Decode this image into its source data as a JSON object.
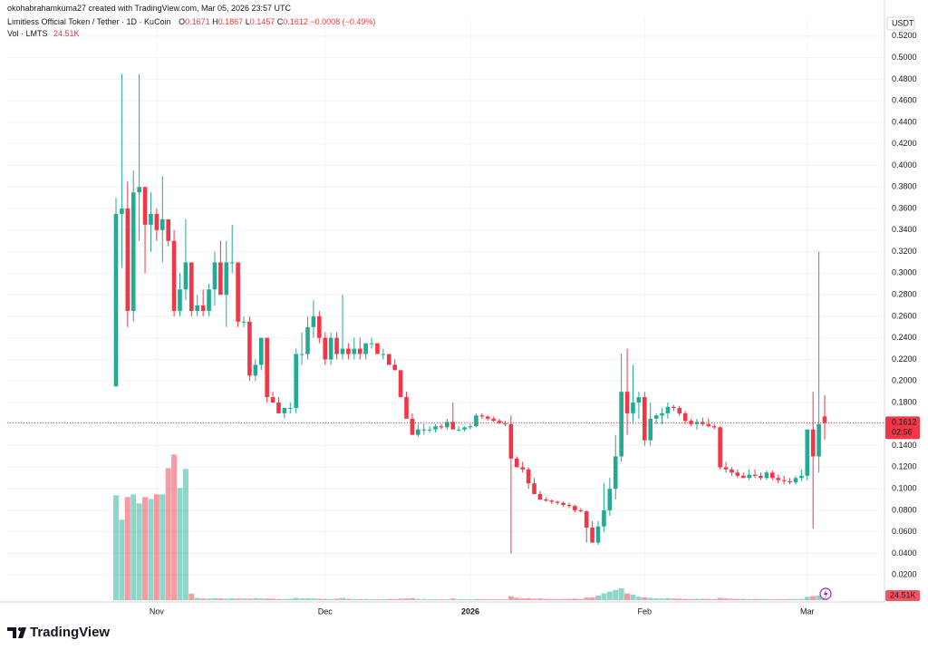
{
  "chart_data": {
    "type": "candlestick",
    "attribution": "okohabrahamkuma27 created with TradingView.com, Mar 05, 2026 23:57 UTC",
    "title": "Limitless Official Token / Tether · 1D · KuCoin",
    "ohlc_labels": [
      "O",
      "H",
      "L",
      "C"
    ],
    "change_label": "−0.0008 (−0.49%)",
    "volume_title": "Vol · LMTS",
    "currency": "USDT",
    "countdown": "02:56",
    "up_color": "#22ab94",
    "down_color": "#f23645",
    "grid": true,
    "ylim": [
      0,
      0.535
    ],
    "yticks": [
      {
        "value": 0.02,
        "label": "0.0200"
      },
      {
        "value": 0.04,
        "label": "0.0400"
      },
      {
        "value": 0.06,
        "label": "0.0600"
      },
      {
        "value": 0.08,
        "label": "0.0800"
      },
      {
        "value": 0.1,
        "label": "0.1000"
      },
      {
        "value": 0.12,
        "label": "0.1200"
      },
      {
        "value": 0.14,
        "label": "0.1400"
      },
      {
        "value": 0.16,
        "label": "0.1600"
      },
      {
        "value": 0.18,
        "label": "0.1800"
      },
      {
        "value": 0.2,
        "label": "0.2000"
      },
      {
        "value": 0.22,
        "label": "0.2200"
      },
      {
        "value": 0.24,
        "label": "0.2400"
      },
      {
        "value": 0.26,
        "label": "0.2600"
      },
      {
        "value": 0.28,
        "label": "0.2800"
      },
      {
        "value": 0.3,
        "label": "0.3000"
      },
      {
        "value": 0.32,
        "label": "0.3200"
      },
      {
        "value": 0.34,
        "label": "0.3400"
      },
      {
        "value": 0.36,
        "label": "0.3600"
      },
      {
        "value": 0.38,
        "label": "0.3800"
      },
      {
        "value": 0.4,
        "label": "0.4000"
      },
      {
        "value": 0.42,
        "label": "0.4200"
      },
      {
        "value": 0.44,
        "label": "0.4400"
      },
      {
        "value": 0.46,
        "label": "0.4600"
      },
      {
        "value": 0.48,
        "label": "0.4800"
      },
      {
        "value": 0.5,
        "label": "0.5000"
      },
      {
        "value": 0.52,
        "label": "0.5200"
      }
    ],
    "categories": [
      null,
      null,
      null,
      null,
      null,
      null,
      null,
      "Nov",
      null,
      null,
      null,
      null,
      null,
      null,
      null,
      null,
      null,
      null,
      null,
      null,
      null,
      null,
      null,
      null,
      null,
      null,
      null,
      null,
      null,
      null,
      null,
      null,
      null,
      null,
      null,
      null,
      "Dec",
      null,
      null,
      null,
      null,
      null,
      null,
      null,
      null,
      null,
      null,
      null,
      null,
      null,
      null,
      null,
      null,
      null,
      null,
      null,
      null,
      null,
      null,
      null,
      null,
      "2026",
      null,
      null,
      null,
      null,
      null,
      null,
      null,
      null,
      null,
      null,
      null,
      null,
      null,
      null,
      null,
      null,
      null,
      null,
      null,
      null,
      null,
      null,
      null,
      null,
      null,
      null,
      null,
      null,
      null,
      "Feb",
      null,
      null,
      null,
      null,
      null,
      null,
      null,
      null,
      null,
      null,
      null,
      null,
      null,
      null,
      null,
      null,
      null,
      null,
      null,
      null,
      null,
      null,
      null,
      null,
      null,
      null,
      null,
      "Mar",
      null,
      null,
      null
    ],
    "open": [
      0.195,
      0.355,
      0.36,
      0.265,
      0.375,
      0.38,
      0.345,
      0.355,
      0.34,
      0.35,
      0.33,
      0.265,
      0.285,
      0.31,
      0.265,
      0.27,
      0.265,
      0.285,
      0.31,
      0.28,
      0.31,
      0.31,
      0.255,
      0.255,
      0.205,
      0.215,
      0.24,
      0.185,
      0.18,
      0.17,
      0.175,
      0.175,
      0.225,
      0.225,
      0.25,
      0.26,
      0.24,
      0.22,
      0.24,
      0.225,
      0.23,
      0.225,
      0.23,
      0.225,
      0.235,
      0.235,
      0.225,
      0.225,
      0.215,
      0.21,
      0.185,
      0.165,
      0.15,
      0.155,
      0.155,
      0.155,
      0.158,
      0.157,
      0.162,
      0.155,
      0.155,
      0.157,
      0.158,
      0.168,
      0.167,
      0.165,
      0.163,
      0.161,
      0.16,
      0.128,
      0.12,
      0.118,
      0.105,
      0.095,
      0.09,
      0.089,
      0.088,
      0.087,
      0.085,
      0.084,
      0.08,
      0.079,
      0.064,
      0.05,
      0.065,
      0.08,
      0.1,
      0.13,
      0.19,
      0.17,
      0.18,
      0.185,
      0.145,
      0.165,
      0.168,
      0.17,
      0.176,
      0.175,
      0.17,
      0.163,
      0.16,
      0.162,
      0.16,
      0.158,
      0.157,
      0.12,
      0.118,
      0.115,
      0.112,
      0.11,
      0.113,
      0.112,
      0.11,
      0.115,
      0.11,
      0.108,
      0.107,
      0.106,
      0.11,
      0.112,
      0.155,
      0.13,
      0.1671
    ],
    "high": [
      0.37,
      0.485,
      0.385,
      0.395,
      0.485,
      0.38,
      0.375,
      0.36,
      0.39,
      0.35,
      0.34,
      0.3,
      0.35,
      0.31,
      0.28,
      0.285,
      0.29,
      0.32,
      0.33,
      0.33,
      0.345,
      0.31,
      0.26,
      0.26,
      0.22,
      0.24,
      0.24,
      0.19,
      0.185,
      0.175,
      0.18,
      0.23,
      0.245,
      0.26,
      0.275,
      0.265,
      0.245,
      0.245,
      0.245,
      0.28,
      0.235,
      0.24,
      0.24,
      0.235,
      0.24,
      0.235,
      0.23,
      0.225,
      0.22,
      0.21,
      0.19,
      0.17,
      0.16,
      0.16,
      0.158,
      0.16,
      0.16,
      0.165,
      0.18,
      0.158,
      0.158,
      0.16,
      0.17,
      0.17,
      0.168,
      0.167,
      0.165,
      0.163,
      0.168,
      0.13,
      0.125,
      0.12,
      0.11,
      0.098,
      0.092,
      0.09,
      0.089,
      0.088,
      0.087,
      0.085,
      0.082,
      0.08,
      0.07,
      0.07,
      0.105,
      0.11,
      0.15,
      0.225,
      0.23,
      0.215,
      0.19,
      0.19,
      0.18,
      0.17,
      0.175,
      0.18,
      0.178,
      0.177,
      0.172,
      0.165,
      0.165,
      0.166,
      0.165,
      0.16,
      0.158,
      0.125,
      0.12,
      0.118,
      0.115,
      0.118,
      0.118,
      0.115,
      0.117,
      0.117,
      0.113,
      0.112,
      0.11,
      0.112,
      0.118,
      0.155,
      0.19,
      0.32,
      0.1867
    ],
    "low": [
      0.195,
      0.305,
      0.25,
      0.255,
      0.33,
      0.3,
      0.32,
      0.33,
      0.31,
      0.325,
      0.26,
      0.26,
      0.275,
      0.26,
      0.26,
      0.26,
      0.26,
      0.27,
      0.28,
      0.25,
      0.3,
      0.25,
      0.25,
      0.2,
      0.2,
      0.21,
      0.18,
      0.18,
      0.17,
      0.165,
      0.17,
      0.17,
      0.215,
      0.22,
      0.24,
      0.235,
      0.215,
      0.215,
      0.22,
      0.22,
      0.22,
      0.22,
      0.22,
      0.22,
      0.23,
      0.225,
      0.22,
      0.215,
      0.21,
      0.185,
      0.165,
      0.15,
      0.148,
      0.15,
      0.152,
      0.152,
      0.155,
      0.155,
      0.158,
      0.153,
      0.153,
      0.155,
      0.157,
      0.165,
      0.163,
      0.162,
      0.16,
      0.158,
      0.04,
      0.12,
      0.115,
      0.1,
      0.095,
      0.09,
      0.088,
      0.086,
      0.085,
      0.083,
      0.082,
      0.078,
      0.078,
      0.05,
      0.05,
      0.048,
      0.06,
      0.075,
      0.09,
      0.125,
      0.15,
      0.16,
      0.165,
      0.14,
      0.14,
      0.16,
      0.16,
      0.165,
      0.172,
      0.168,
      0.16,
      0.158,
      0.155,
      0.158,
      0.157,
      0.155,
      0.118,
      0.115,
      0.112,
      0.11,
      0.11,
      0.108,
      0.11,
      0.108,
      0.108,
      0.108,
      0.105,
      0.104,
      0.104,
      0.104,
      0.107,
      0.108,
      0.063,
      0.115,
      0.1457
    ],
    "close": [
      0.355,
      0.36,
      0.265,
      0.375,
      0.38,
      0.345,
      0.355,
      0.34,
      0.35,
      0.33,
      0.265,
      0.285,
      0.31,
      0.265,
      0.27,
      0.265,
      0.285,
      0.31,
      0.28,
      0.31,
      0.31,
      0.255,
      0.255,
      0.205,
      0.215,
      0.24,
      0.185,
      0.18,
      0.17,
      0.175,
      0.175,
      0.225,
      0.225,
      0.25,
      0.26,
      0.24,
      0.22,
      0.24,
      0.225,
      0.23,
      0.225,
      0.23,
      0.225,
      0.235,
      0.235,
      0.225,
      0.225,
      0.215,
      0.21,
      0.185,
      0.165,
      0.15,
      0.155,
      0.155,
      0.155,
      0.158,
      0.157,
      0.162,
      0.155,
      0.155,
      0.157,
      0.158,
      0.168,
      0.167,
      0.165,
      0.163,
      0.161,
      0.16,
      0.128,
      0.12,
      0.118,
      0.105,
      0.095,
      0.09,
      0.089,
      0.088,
      0.087,
      0.085,
      0.084,
      0.08,
      0.079,
      0.064,
      0.05,
      0.065,
      0.08,
      0.1,
      0.13,
      0.19,
      0.17,
      0.18,
      0.185,
      0.145,
      0.165,
      0.168,
      0.17,
      0.176,
      0.175,
      0.17,
      0.163,
      0.16,
      0.162,
      0.16,
      0.158,
      0.157,
      0.12,
      0.118,
      0.115,
      0.112,
      0.11,
      0.113,
      0.112,
      0.11,
      0.115,
      0.11,
      0.108,
      0.107,
      0.106,
      0.11,
      0.112,
      0.155,
      0.13,
      0.16,
      0.1612
    ],
    "volume_ylim": [
      0,
      3000000
    ],
    "volume": {
      "values": [
        1856000,
        1424000,
        1824000,
        1872000,
        1712000,
        1824000,
        1792000,
        1872000,
        1872000,
        2336000,
        2576000,
        1984000,
        2320000,
        112000,
        40000,
        30000,
        28000,
        35000,
        30000,
        25000,
        32000,
        28000,
        30000,
        26000,
        35000,
        30000,
        28000,
        25000,
        22000,
        20000,
        25000,
        38000,
        30000,
        35000,
        30000,
        25000,
        22000,
        20000,
        24000,
        40000,
        22000,
        20000,
        18000,
        20000,
        18000,
        16000,
        18000,
        20000,
        18000,
        25000,
        30000,
        35000,
        22000,
        18000,
        15000,
        16000,
        15000,
        18000,
        28000,
        16000,
        15000,
        14000,
        20000,
        16000,
        15000,
        14000,
        13000,
        14000,
        70000,
        40000,
        30000,
        35000,
        25000,
        30000,
        22000,
        20000,
        18000,
        20000,
        22000,
        25000,
        20000,
        45000,
        50000,
        80000,
        120000,
        150000,
        180000,
        210000,
        120000,
        100000,
        60000,
        50000,
        40000,
        30000,
        30000,
        35000,
        28000,
        25000,
        22000,
        20000,
        25000,
        22000,
        20000,
        18000,
        40000,
        30000,
        25000,
        22000,
        20000,
        18000,
        20000,
        18000,
        20000,
        16000,
        15000,
        16000,
        18000,
        20000,
        22000,
        60000,
        70000,
        80000,
        24510
      ],
      "value_labels": [
        null,
        null,
        null,
        null,
        null,
        null,
        null,
        null,
        null,
        null,
        null,
        null,
        null,
        null,
        null,
        null,
        null,
        null,
        null,
        null,
        null,
        null,
        null,
        null,
        null,
        null,
        null,
        null,
        null,
        null,
        null,
        null,
        null,
        null,
        null,
        null,
        null,
        null,
        null,
        null,
        null,
        null,
        null,
        null,
        null,
        null,
        null,
        null,
        null,
        null,
        null,
        null,
        null,
        null,
        null,
        null,
        null,
        null,
        null,
        null,
        null,
        null,
        null,
        null,
        null,
        null,
        null,
        null,
        null,
        null,
        null,
        null,
        null,
        null,
        null,
        null,
        null,
        null,
        null,
        null,
        null,
        null,
        null,
        null,
        null,
        null,
        null,
        null,
        null,
        null,
        null,
        null,
        null,
        null,
        null,
        null,
        null,
        null,
        null,
        null,
        null,
        null,
        null,
        null,
        null,
        null,
        null,
        null,
        null,
        null,
        null,
        null,
        null,
        null,
        null,
        null,
        null,
        null,
        null,
        null,
        null,
        null,
        "24.51K"
      ]
    }
  },
  "footer": {
    "logo": "TradingView"
  }
}
